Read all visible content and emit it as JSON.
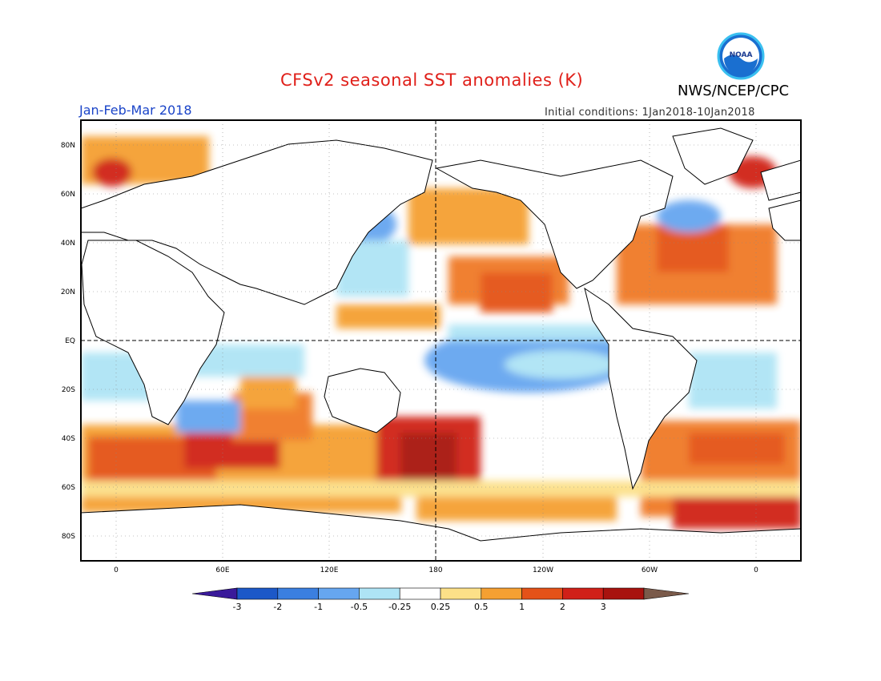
{
  "header": {
    "title": "CFSv2 seasonal SST anomalies (K)",
    "agency": "NWS/NCEP/CPC",
    "period": "Jan-Feb-Mar 2018",
    "initial_conditions": "Initial conditions: 1Jan2018-10Jan2018",
    "logo_text": "NOAA"
  },
  "map": {
    "projection": "equirectangular",
    "lon_range": [
      -20,
      380
    ],
    "lat_range": [
      -90,
      90
    ],
    "lat_ticks": [
      "80N",
      "60N",
      "40N",
      "20N",
      "EQ",
      "20S",
      "40S",
      "60S",
      "80S"
    ],
    "lon_ticks": [
      "0",
      "60E",
      "120E",
      "180",
      "120W",
      "60W",
      "0"
    ],
    "reference_lines": [
      "equator (dashed)",
      "180 meridian (dashed)"
    ],
    "colorbar": {
      "labels": [
        "-3",
        "-2",
        "-1",
        "-0.5",
        "-0.25",
        "0.25",
        "0.5",
        "1",
        "2",
        "3"
      ],
      "colors": [
        "#3a1a9a",
        "#1c58c8",
        "#3b7fe0",
        "#66a6f0",
        "#aee4f5",
        "#ffffff",
        "#fce088",
        "#f5a032",
        "#e45218",
        "#d02018",
        "#a8120e",
        "#7a5a4a"
      ]
    }
  }
}
